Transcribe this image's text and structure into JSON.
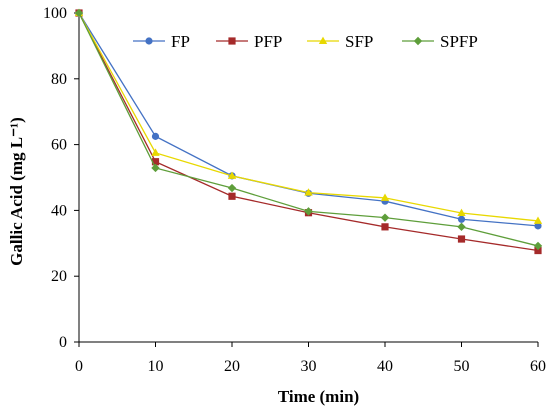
{
  "chart_data": {
    "type": "line",
    "title": "",
    "xlabel": "Time (min)",
    "ylabel": "Gallic Acid (mg L⁻¹)",
    "x": [
      0,
      10,
      20,
      30,
      40,
      50,
      60
    ],
    "xlim": [
      0,
      60
    ],
    "ylim": [
      0,
      100
    ],
    "xticks": [
      "0",
      "10",
      "20",
      "30",
      "40",
      "50",
      "60"
    ],
    "yticks": [
      "0",
      "20",
      "40",
      "60",
      "80",
      "100"
    ],
    "grid": false,
    "legend_position": "top",
    "series": [
      {
        "name": "FP",
        "color": "#4472C4",
        "marker": "circle",
        "values": [
          100,
          62.5,
          50.5,
          45.2,
          42.8,
          37.3,
          35.3
        ]
      },
      {
        "name": "PFP",
        "color": "#A52A2A",
        "marker": "square",
        "values": [
          100,
          54.8,
          44.3,
          39.3,
          35.0,
          31.3,
          27.8
        ]
      },
      {
        "name": "SFP",
        "color": "#E8D800",
        "marker": "triangle",
        "values": [
          100,
          57.5,
          50.5,
          45.4,
          43.8,
          39.2,
          36.8
        ]
      },
      {
        "name": "SPFP",
        "color": "#5E9E3A",
        "marker": "diamond",
        "values": [
          100,
          52.9,
          46.8,
          39.7,
          37.8,
          35.0,
          29.2
        ]
      }
    ]
  }
}
